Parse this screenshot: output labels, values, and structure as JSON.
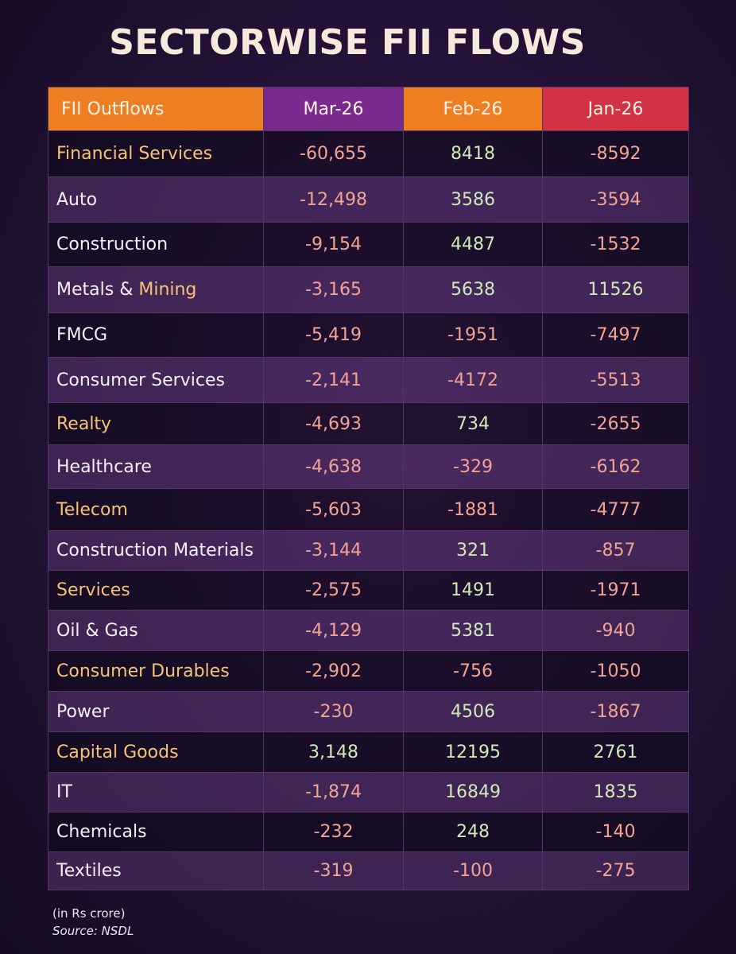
{
  "chart_data": {
    "type": "table",
    "title": "SECTORWISE FII FLOWS",
    "header": {
      "label": "FII Outflows",
      "columns": [
        "Mar-26",
        "Feb-26",
        "Jan-26"
      ]
    },
    "rows": [
      {
        "sector": "Financial Services",
        "highlight": true,
        "mar": "-60,655",
        "feb": "8418",
        "jan": "-8592"
      },
      {
        "sector": "Auto",
        "highlight": false,
        "mar": "-12,498",
        "feb": "3586",
        "jan": "-3594"
      },
      {
        "sector": "Construction",
        "highlight": false,
        "mar": "-9,154",
        "feb": "4487",
        "jan": "-1532"
      },
      {
        "sector": "Metals & Mining",
        "highlight": false,
        "mar": "-3,165",
        "feb": "5638",
        "jan": "11526"
      },
      {
        "sector": "FMCG",
        "highlight": false,
        "mar": "-5,419",
        "feb": "-1951",
        "jan": "-7497"
      },
      {
        "sector": "Consumer Services",
        "highlight": false,
        "mar": "-2,141",
        "feb": "-4172",
        "jan": "-5513"
      },
      {
        "sector": "Realty",
        "highlight": true,
        "mar": "-4,693",
        "feb": "734",
        "jan": "-2655"
      },
      {
        "sector": "Healthcare",
        "highlight": false,
        "mar": "-4,638",
        "feb": "-329",
        "jan": "-6162"
      },
      {
        "sector": "Telecom",
        "highlight": true,
        "mar": "-5,603",
        "feb": "-1881",
        "jan": "-4777"
      },
      {
        "sector": "Construction Materials",
        "highlight": false,
        "mar": "-3,144",
        "feb": "321",
        "jan": "-857"
      },
      {
        "sector": "Services",
        "highlight": true,
        "mar": "-2,575",
        "feb": "1491",
        "jan": "-1971"
      },
      {
        "sector": "Oil & Gas",
        "highlight": false,
        "mar": "-4,129",
        "feb": "5381",
        "jan": "-940"
      },
      {
        "sector": "Consumer Durables",
        "highlight": true,
        "mar": "-2,902",
        "feb": "-756",
        "jan": "-1050"
      },
      {
        "sector": "Power",
        "highlight": false,
        "mar": "-230",
        "feb": "4506",
        "jan": "-1867"
      },
      {
        "sector": "Capital Goods",
        "highlight": true,
        "mar": "3,148",
        "feb": "12195",
        "jan": "2761"
      },
      {
        "sector": "IT",
        "highlight": false,
        "mar": "-1,874",
        "feb": "16849",
        "jan": "1835"
      },
      {
        "sector": "Chemicals",
        "highlight": false,
        "mar": "-232",
        "feb": "248",
        "jan": "-140"
      },
      {
        "sector": "Textiles",
        "highlight": false,
        "mar": "-319",
        "feb": "-100",
        "jan": "-275"
      }
    ],
    "unit_note": "(in Rs crore)",
    "source": "Source: NSDL"
  },
  "colors": {
    "positive": "#cfe9b9",
    "negative": "#f2a394",
    "highlight_label": "#f3c476",
    "metals_word": "#f3c476"
  }
}
